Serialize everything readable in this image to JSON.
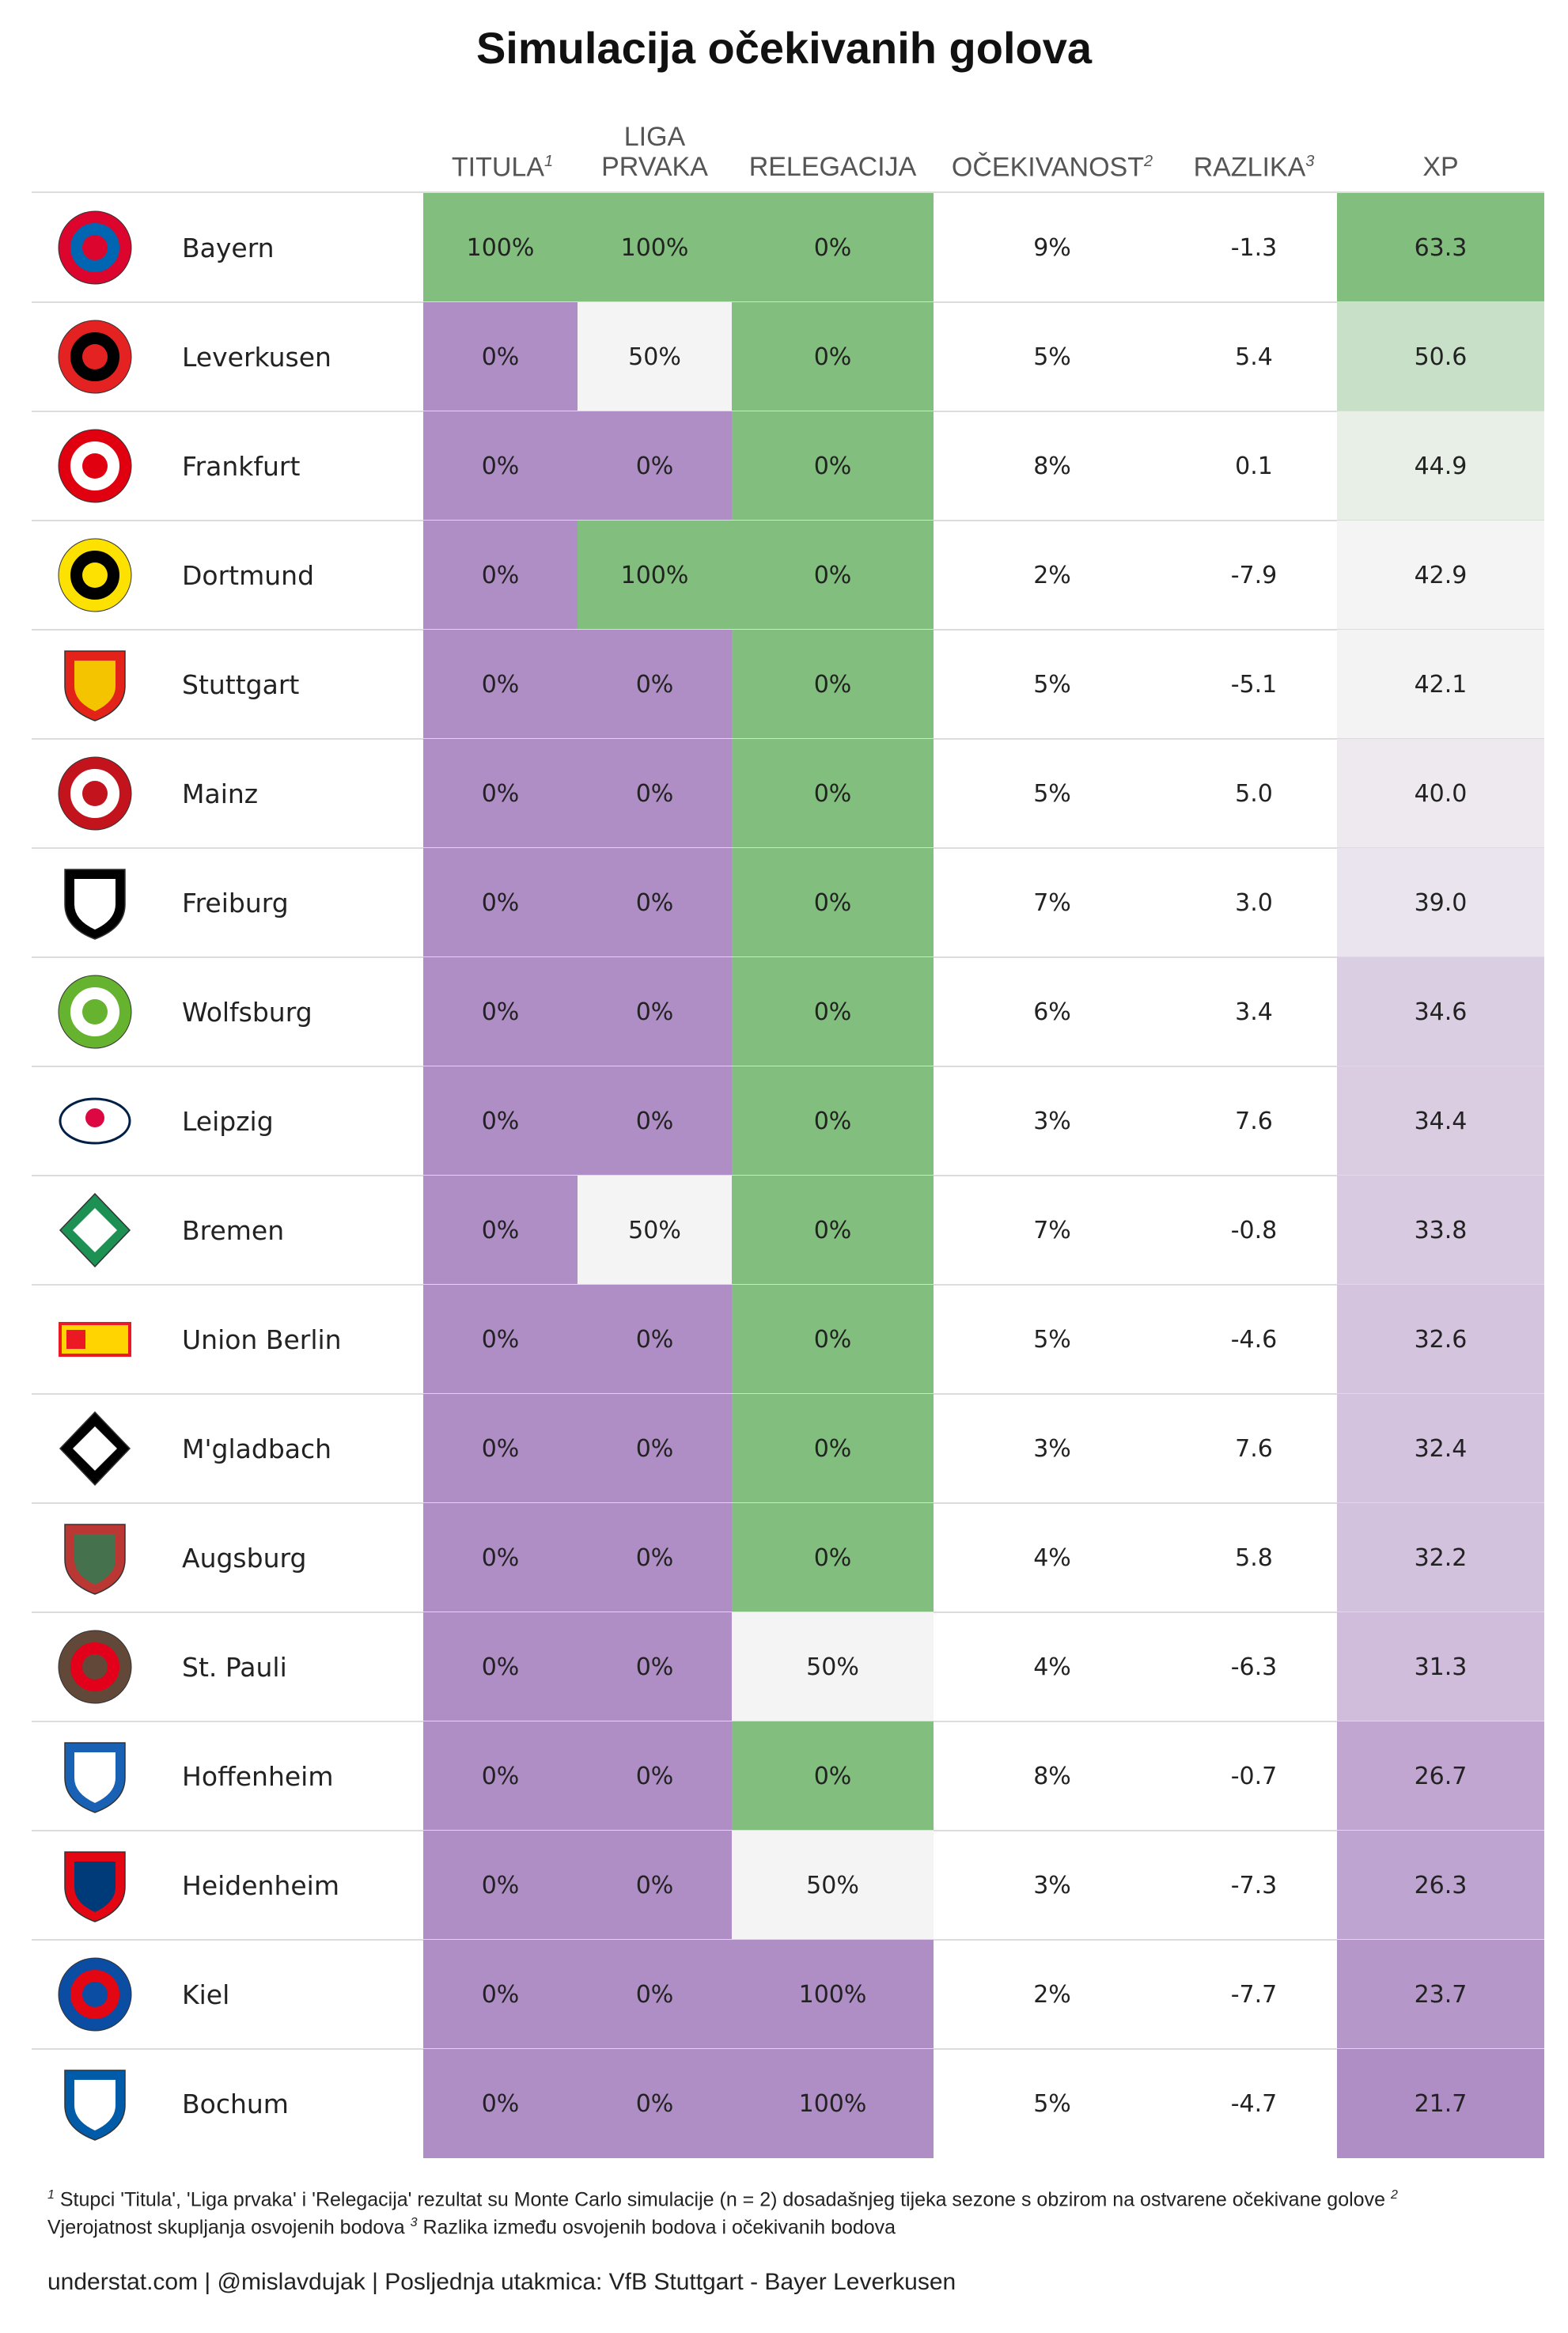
{
  "title": "Simulacija očekivanih golova",
  "columns": {
    "titula": {
      "label": "TITULA",
      "note": "1"
    },
    "liga": {
      "label_line1": "LIGA",
      "label_line2": "PRVAKA"
    },
    "relegacija": {
      "label": "RELEGACIJA"
    },
    "ocekivanost": {
      "label": "OČEKIVANOST",
      "note": "2"
    },
    "razlika": {
      "label": "RAZLIKA",
      "note": "3"
    },
    "xp": {
      "label": "XP"
    }
  },
  "colors": {
    "green": "#82bf7e",
    "purple": "#af8dc5",
    "neutral": "#f4f4f4"
  },
  "chart_data": {
    "type": "table",
    "title": "Simulacija očekivanih golova",
    "columns": [
      "TITULA",
      "LIGA PRVAKA",
      "RELEGACIJA",
      "OČEKIVANOST",
      "RAZLIKA",
      "XP"
    ],
    "rows": [
      {
        "team": "Bayern",
        "titula": "100%",
        "liga": "100%",
        "relegacija": "0%",
        "ocekivanost": "9%",
        "razlika": "-1.3",
        "xp": "63.3"
      },
      {
        "team": "Leverkusen",
        "titula": "0%",
        "liga": "50%",
        "relegacija": "0%",
        "ocekivanost": "5%",
        "razlika": "5.4",
        "xp": "50.6"
      },
      {
        "team": "Frankfurt",
        "titula": "0%",
        "liga": "0%",
        "relegacija": "0%",
        "ocekivanost": "8%",
        "razlika": "0.1",
        "xp": "44.9"
      },
      {
        "team": "Dortmund",
        "titula": "0%",
        "liga": "100%",
        "relegacija": "0%",
        "ocekivanost": "2%",
        "razlika": "-7.9",
        "xp": "42.9"
      },
      {
        "team": "Stuttgart",
        "titula": "0%",
        "liga": "0%",
        "relegacija": "0%",
        "ocekivanost": "5%",
        "razlika": "-5.1",
        "xp": "42.1"
      },
      {
        "team": "Mainz",
        "titula": "0%",
        "liga": "0%",
        "relegacija": "0%",
        "ocekivanost": "5%",
        "razlika": "5.0",
        "xp": "40.0"
      },
      {
        "team": "Freiburg",
        "titula": "0%",
        "liga": "0%",
        "relegacija": "0%",
        "ocekivanost": "7%",
        "razlika": "3.0",
        "xp": "39.0"
      },
      {
        "team": "Wolfsburg",
        "titula": "0%",
        "liga": "0%",
        "relegacija": "0%",
        "ocekivanost": "6%",
        "razlika": "3.4",
        "xp": "34.6"
      },
      {
        "team": "Leipzig",
        "titula": "0%",
        "liga": "0%",
        "relegacija": "0%",
        "ocekivanost": "3%",
        "razlika": "7.6",
        "xp": "34.4"
      },
      {
        "team": "Bremen",
        "titula": "0%",
        "liga": "50%",
        "relegacija": "0%",
        "ocekivanost": "7%",
        "razlika": "-0.8",
        "xp": "33.8"
      },
      {
        "team": "Union Berlin",
        "titula": "0%",
        "liga": "0%",
        "relegacija": "0%",
        "ocekivanost": "5%",
        "razlika": "-4.6",
        "xp": "32.6"
      },
      {
        "team": "M'gladbach",
        "titula": "0%",
        "liga": "0%",
        "relegacija": "0%",
        "ocekivanost": "3%",
        "razlika": "7.6",
        "xp": "32.4"
      },
      {
        "team": "Augsburg",
        "titula": "0%",
        "liga": "0%",
        "relegacija": "0%",
        "ocekivanost": "4%",
        "razlika": "5.8",
        "xp": "32.2"
      },
      {
        "team": "St. Pauli",
        "titula": "0%",
        "liga": "0%",
        "relegacija": "50%",
        "ocekivanost": "4%",
        "razlika": "-6.3",
        "xp": "31.3"
      },
      {
        "team": "Hoffenheim",
        "titula": "0%",
        "liga": "0%",
        "relegacija": "0%",
        "ocekivanost": "8%",
        "razlika": "-0.7",
        "xp": "26.7"
      },
      {
        "team": "Heidenheim",
        "titula": "0%",
        "liga": "0%",
        "relegacija": "50%",
        "ocekivanost": "3%",
        "razlika": "-7.3",
        "xp": "26.3"
      },
      {
        "team": "Kiel",
        "titula": "0%",
        "liga": "0%",
        "relegacija": "100%",
        "ocekivanost": "2%",
        "razlika": "-7.7",
        "xp": "23.7"
      },
      {
        "team": "Bochum",
        "titula": "0%",
        "liga": "0%",
        "relegacija": "100%",
        "ocekivanost": "5%",
        "razlika": "-4.7",
        "xp": "21.7"
      }
    ]
  },
  "teams": [
    {
      "name": "Bayern",
      "logo": "bayern-logo",
      "c1": "#dc052d",
      "c2": "#0066b2"
    },
    {
      "name": "Leverkusen",
      "logo": "leverkusen-logo",
      "c1": "#e32221",
      "c2": "#000000"
    },
    {
      "name": "Frankfurt",
      "logo": "frankfurt-logo",
      "c1": "#e1000f",
      "c2": "#ffffff"
    },
    {
      "name": "Dortmund",
      "logo": "dortmund-logo",
      "c1": "#fde100",
      "c2": "#000000"
    },
    {
      "name": "Stuttgart",
      "logo": "stuttgart-logo",
      "c1": "#e32219",
      "c2": "#f5c400"
    },
    {
      "name": "Mainz",
      "logo": "mainz-logo",
      "c1": "#c3141e",
      "c2": "#ffffff"
    },
    {
      "name": "Freiburg",
      "logo": "freiburg-logo",
      "c1": "#000000",
      "c2": "#ffffff"
    },
    {
      "name": "Wolfsburg",
      "logo": "wolfsburg-logo",
      "c1": "#65b32e",
      "c2": "#ffffff"
    },
    {
      "name": "Leipzig",
      "logo": "leipzig-logo",
      "c1": "#dd0741",
      "c2": "#001f47"
    },
    {
      "name": "Bremen",
      "logo": "bremen-logo",
      "c1": "#1d9053",
      "c2": "#ffffff"
    },
    {
      "name": "Union Berlin",
      "logo": "union-berlin-logo",
      "c1": "#eb1923",
      "c2": "#ffd400"
    },
    {
      "name": "M'gladbach",
      "logo": "gladbach-logo",
      "c1": "#000000",
      "c2": "#ffffff"
    },
    {
      "name": "Augsburg",
      "logo": "augsburg-logo",
      "c1": "#ba3733",
      "c2": "#46714d"
    },
    {
      "name": "St. Pauli",
      "logo": "st-pauli-logo",
      "c1": "#624839",
      "c2": "#e2001a"
    },
    {
      "name": "Hoffenheim",
      "logo": "hoffenheim-logo",
      "c1": "#1961b5",
      "c2": "#ffffff"
    },
    {
      "name": "Heidenheim",
      "logo": "heidenheim-logo",
      "c1": "#e30613",
      "c2": "#003b79"
    },
    {
      "name": "Kiel",
      "logo": "kiel-logo",
      "c1": "#0a4da2",
      "c2": "#e30613"
    },
    {
      "name": "Bochum",
      "logo": "bochum-logo",
      "c1": "#005ca9",
      "c2": "#ffffff"
    }
  ],
  "footnote": {
    "n1": "1",
    "line1": "Stupci 'Titula', 'Liga prvaka' i 'Relegacija' rezultat su Monte Carlo simulacije (n = 2) dosadašnjeg tijeka sezone s obzirom na ostvarene očekivane golove",
    "n2": "2",
    "line2": "Vjerojatnost skupljanja osvojenih bodova",
    "n3": "3",
    "line3": "Razlika između osvojenih bodova i očekivanih bodova"
  },
  "credits": "understat.com | @mislavdujak | Posljednja utakmica: VfB Stuttgart - Bayer Leverkusen"
}
